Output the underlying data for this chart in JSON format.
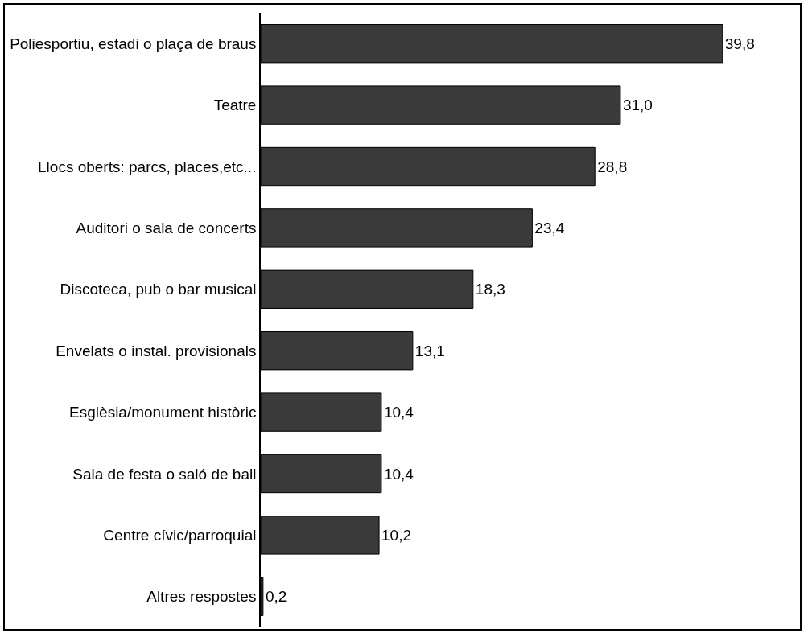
{
  "chart_data": {
    "type": "bar",
    "orientation": "horizontal",
    "categories": [
      "Poliesportiu, estadi o plaça de braus",
      "Teatre",
      "Llocs oberts: parcs, places,etc...",
      "Auditori o sala de concerts",
      "Discoteca, pub o bar musical",
      "Envelats o instal. provisionals",
      "Esglèsia/monument històric",
      "Sala de festa o saló de ball",
      "Centre cívic/parroquial",
      "Altres respostes"
    ],
    "values": [
      39.8,
      31.0,
      28.8,
      23.4,
      18.3,
      13.1,
      10.4,
      10.4,
      10.2,
      0.2
    ],
    "value_labels": [
      "39,8",
      "31,0",
      "28,8",
      "23,4",
      "18,3",
      "13,1",
      "10,4",
      "10,4",
      "10,2",
      "0,2"
    ],
    "color": "#3a3a3a",
    "tick_labels": "y",
    "grid": false
  }
}
